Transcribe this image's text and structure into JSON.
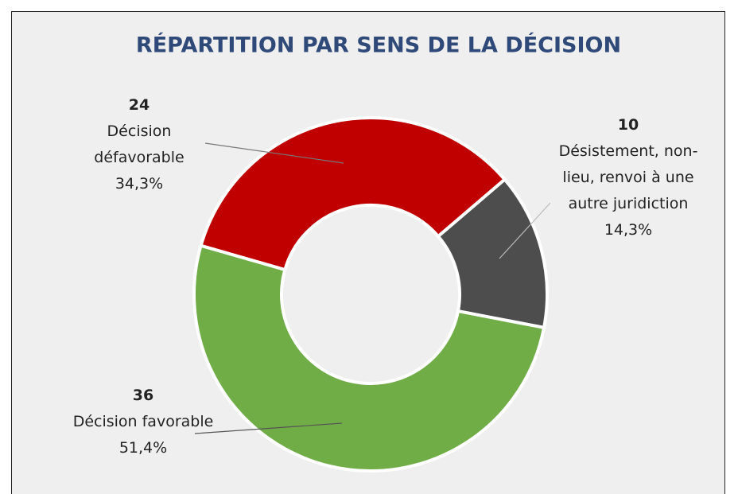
{
  "chart_data": {
    "type": "donut",
    "title": "RÉPARTITION PAR SENS DE LA DÉCISION",
    "categories": [
      "Décision défavorable",
      "Désistement, non-lieu, renvoi à une autre juridiction",
      "Décision favorable"
    ],
    "values": [
      24,
      10,
      36
    ],
    "percent_labels": [
      "34,3%",
      "14,3%",
      "51,4%"
    ],
    "colors": [
      "#c00000",
      "#4d4d4d",
      "#70ad47"
    ]
  }
}
